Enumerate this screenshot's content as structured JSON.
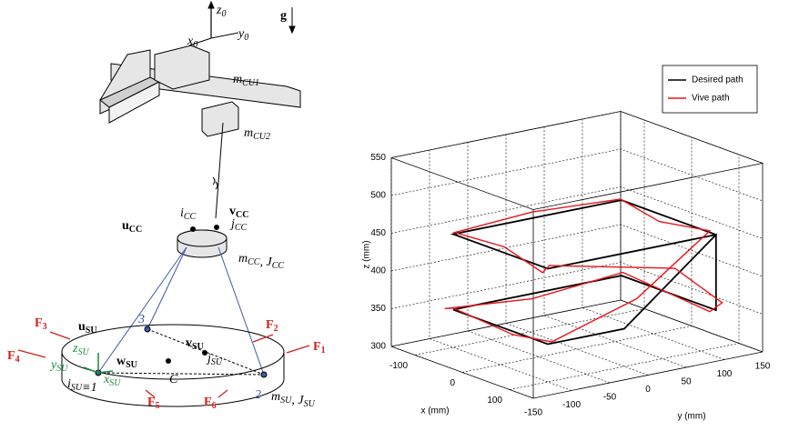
{
  "diagram": {
    "labels": [
      [
        {
          "text": "z",
          "sub": "0"
        }
      ],
      [
        {
          "text": "g"
        }
      ],
      [
        {
          "text": "x",
          "sub": "0"
        }
      ],
      [
        {
          "text": "y",
          "sub": "0"
        }
      ],
      [
        {
          "text": "m",
          "sub": "CU1"
        }
      ],
      [
        {
          "text": "m",
          "sub": "CU2"
        }
      ],
      [
        {
          "text": "i",
          "sub": "CC"
        }
      ],
      [
        {
          "text": "v",
          "sub": "CC"
        }
      ],
      [
        {
          "text": "u",
          "sub": "CC"
        }
      ],
      [
        {
          "text": "j",
          "sub": "CC"
        }
      ],
      [
        {
          "text": "m",
          "sub": "CC"
        },
        {
          "text": ", J",
          "sub": "CC"
        }
      ],
      [
        {
          "text": "F",
          "sub": "3"
        }
      ],
      [
        {
          "text": "u",
          "sub": "SU"
        }
      ],
      [
        {
          "text": "3"
        }
      ],
      [
        {
          "text": "F",
          "sub": "2"
        }
      ],
      [
        {
          "text": "F",
          "sub": "1"
        }
      ],
      [
        {
          "text": "F",
          "sub": "4"
        }
      ],
      [
        {
          "text": "z",
          "sub": "SU"
        }
      ],
      [
        {
          "text": "y",
          "sub": "SU"
        }
      ],
      [
        {
          "text": "v",
          "sub": "SU"
        }
      ],
      [
        {
          "text": "j",
          "sub": "SU"
        }
      ],
      [
        {
          "text": "w",
          "sub": "SU"
        }
      ],
      [
        {
          "text": "C"
        }
      ],
      [
        {
          "text": "i",
          "sub": "SU"
        },
        {
          "text": "≡1"
        }
      ],
      [
        {
          "text": "x",
          "sub": "SU"
        }
      ],
      [
        {
          "text": "F",
          "sub": "5"
        }
      ],
      [
        {
          "text": "F",
          "sub": "6"
        }
      ],
      [
        {
          "text": "2"
        }
      ],
      [
        {
          "text": "m",
          "sub": "SU"
        },
        {
          "text": ", J",
          "sub": "SU"
        }
      ]
    ]
  },
  "chart_data": {
    "type": "line3d",
    "xlabel": "x (mm)",
    "ylabel": "y (mm)",
    "zlabel": "z (mm)",
    "xlim": [
      -150,
      150
    ],
    "ylim": [
      -150,
      150
    ],
    "zlim": [
      300,
      550
    ],
    "xticks": [
      -100,
      0,
      100
    ],
    "yticks": [
      -150,
      -100,
      -50,
      0,
      50,
      100,
      150
    ],
    "zticks": [
      300,
      350,
      400,
      450,
      500,
      550
    ],
    "grid": true,
    "legend": "upper right",
    "series": [
      {
        "name": "Desired path",
        "color": "#000000",
        "x": [
          -100,
          -100,
          100,
          100,
          100,
          -100,
          -100,
          100,
          100,
          100,
          -100
        ],
        "y": [
          -100,
          120,
          120,
          120,
          -100,
          -100,
          120,
          120,
          0,
          -100,
          -100
        ],
        "z": [
          350,
          350,
          350,
          450,
          450,
          450,
          450,
          450,
          350,
          350,
          350
        ]
      },
      {
        "name": "Vive path",
        "color": "#e8141c",
        "x": [
          -110,
          -95,
          -105,
          95,
          105,
          110,
          95,
          105,
          0,
          -105,
          -95,
          -110,
          -20,
          95,
          110,
          100,
          10,
          -100,
          -110
        ],
        "y": [
          -105,
          0,
          125,
          115,
          125,
          60,
          -95,
          -110,
          -95,
          -95,
          0,
          125,
          120,
          115,
          10,
          -95,
          -90,
          -100,
          -105
        ],
        "z": [
          350,
          345,
          352,
          348,
          360,
          420,
          452,
          448,
          455,
          450,
          460,
          448,
          440,
          455,
          390,
          352,
          340,
          352,
          350
        ]
      }
    ]
  }
}
